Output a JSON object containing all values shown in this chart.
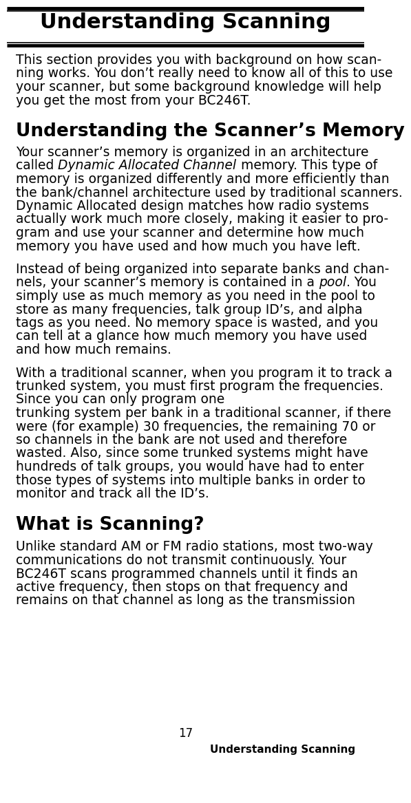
{
  "bg_color": "#ffffff",
  "title": "Understanding Scanning",
  "body_fontsize": 13.5,
  "section2_title": "Understanding the Scanner’s Memory",
  "section3_title": "What is Scanning?",
  "footer_text": "Understanding Scanning",
  "page_number": "17",
  "para1_lines": [
    "This section provides you with background on how scan-",
    "ning works. You don’t really need to know all of this to use",
    "your scanner, but some background knowledge will help",
    "you get the most from your BC246T."
  ],
  "para2_lines": [
    [
      "Your scanner’s memory is organized in an architecture",
      false
    ],
    [
      "called ",
      false,
      "Dynamic Allocated Channel",
      true,
      " memory. This type of",
      false
    ],
    [
      "memory is organized differently and more efficiently than",
      false
    ],
    [
      "the bank/channel architecture used by traditional scanners.",
      false
    ],
    [
      "Dynamic Allocated design matches how radio systems",
      false
    ],
    [
      "actually work much more closely, making it easier to pro-",
      false
    ],
    [
      "gram and use your scanner and determine how much",
      false
    ],
    [
      "memory you have used and how much you have left.",
      false
    ]
  ],
  "para3_lines": [
    [
      "Instead of being organized into separate banks and chan-",
      false
    ],
    [
      "nels, your scanner’s memory is contained in a ",
      false,
      "pool",
      true,
      ". You",
      false
    ],
    [
      "simply use as much memory as you need in the pool to",
      false
    ],
    [
      "store as many frequencies, talk group ID’s, and alpha",
      false
    ],
    [
      "tags as you need. No memory space is wasted, and you",
      false
    ],
    [
      "can tell at a glance how much memory you have used",
      false
    ],
    [
      "and how much remains.",
      false
    ]
  ],
  "para4_lines": [
    "With a traditional scanner, when you program it to track a",
    "trunked system, you must first program the frequencies.",
    "Since you can only program one",
    "trunking system per bank in a traditional scanner, if there",
    "were (for example) 30 frequencies, the remaining 70 or",
    "so channels in the bank are not used and therefore",
    "wasted. Also, since some trunked systems might have",
    "hundreds of talk groups, you would have had to enter",
    "those types of systems into multiple banks in order to",
    "monitor and track all the ID’s."
  ],
  "para5_lines": [
    "Unlike standard AM or FM radio stations, most two-way",
    "communications do not transmit continuously. Your",
    "BC246T scans programmed channels until it finds an",
    "active frequency, then stops on that frequency and",
    "remains on that channel as long as the transmission"
  ]
}
